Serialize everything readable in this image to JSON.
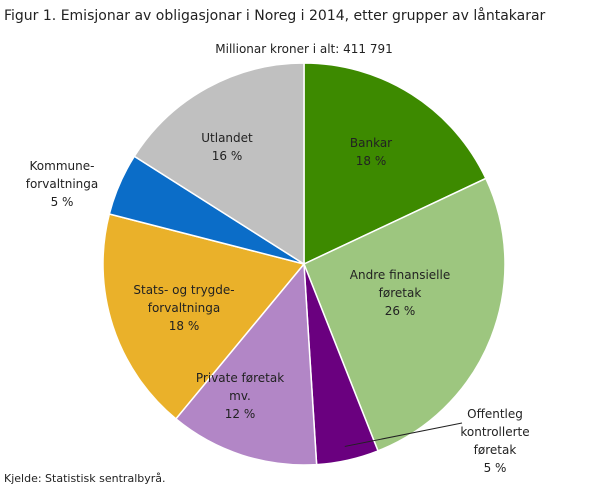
{
  "chart_data": {
    "type": "pie",
    "title": "Figur 1. Emisjonar av obligasjonar i Noreg i 2014, etter grupper av låntakarar",
    "subtitle": "Millionar  kroner i alt: 411 791",
    "source": "Kjelde: Statistisk sentralbyrå.",
    "categories": [
      "Bankar",
      "Andre finansielle\nføretak",
      "Offentleg\nkontrollerte\nføretak",
      "Private føretak\nmv.",
      "Stats- og trygde-\nforvaltninga",
      "Kommune-\nforvaltninga",
      "Utlandet"
    ],
    "values": [
      18,
      26,
      5,
      12,
      18,
      5,
      16
    ],
    "value_labels": [
      "18 %",
      "26 %",
      "5 %",
      "12 %",
      "18 %",
      "5 %",
      "16 %"
    ],
    "colors": [
      "#3d8a00",
      "#9dc67f",
      "#6a007f",
      "#b286c6",
      "#eab12a",
      "#0b6dc8",
      "#c0c0c0"
    ]
  }
}
